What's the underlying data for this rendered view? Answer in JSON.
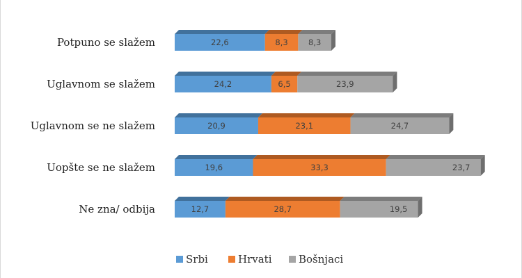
{
  "chart_data": {
    "type": "bar",
    "orientation": "horizontal",
    "stacked": true,
    "style": "3d",
    "title": "",
    "xlabel": "",
    "ylabel": "",
    "categories": [
      "Potpuno se slažem",
      "Uglavnom se slažem",
      "Uglavnom se ne slažem",
      "Uopšte se ne slažem",
      "Ne zna/ odbija"
    ],
    "series": [
      {
        "name": "Srbi",
        "color": "#5b9bd5",
        "values": [
          22.6,
          24.2,
          20.9,
          19.6,
          12.7
        ],
        "labels": [
          "22,6",
          "24,2",
          "20,9",
          "19,6",
          "12,7"
        ]
      },
      {
        "name": "Hrvati",
        "color": "#ed7d31",
        "values": [
          8.3,
          6.5,
          23.1,
          33.3,
          28.7
        ],
        "labels": [
          "8,3",
          "6,5",
          "23,1",
          "33,3",
          "28,7"
        ]
      },
      {
        "name": "Bošnjaci",
        "color": "#a5a5a5",
        "values": [
          8.3,
          23.9,
          24.7,
          23.7,
          19.5
        ],
        "labels": [
          "8,3",
          "23,9",
          "24,7",
          "23,7",
          "19,5"
        ]
      }
    ],
    "legend_position": "bottom",
    "grid": false
  }
}
